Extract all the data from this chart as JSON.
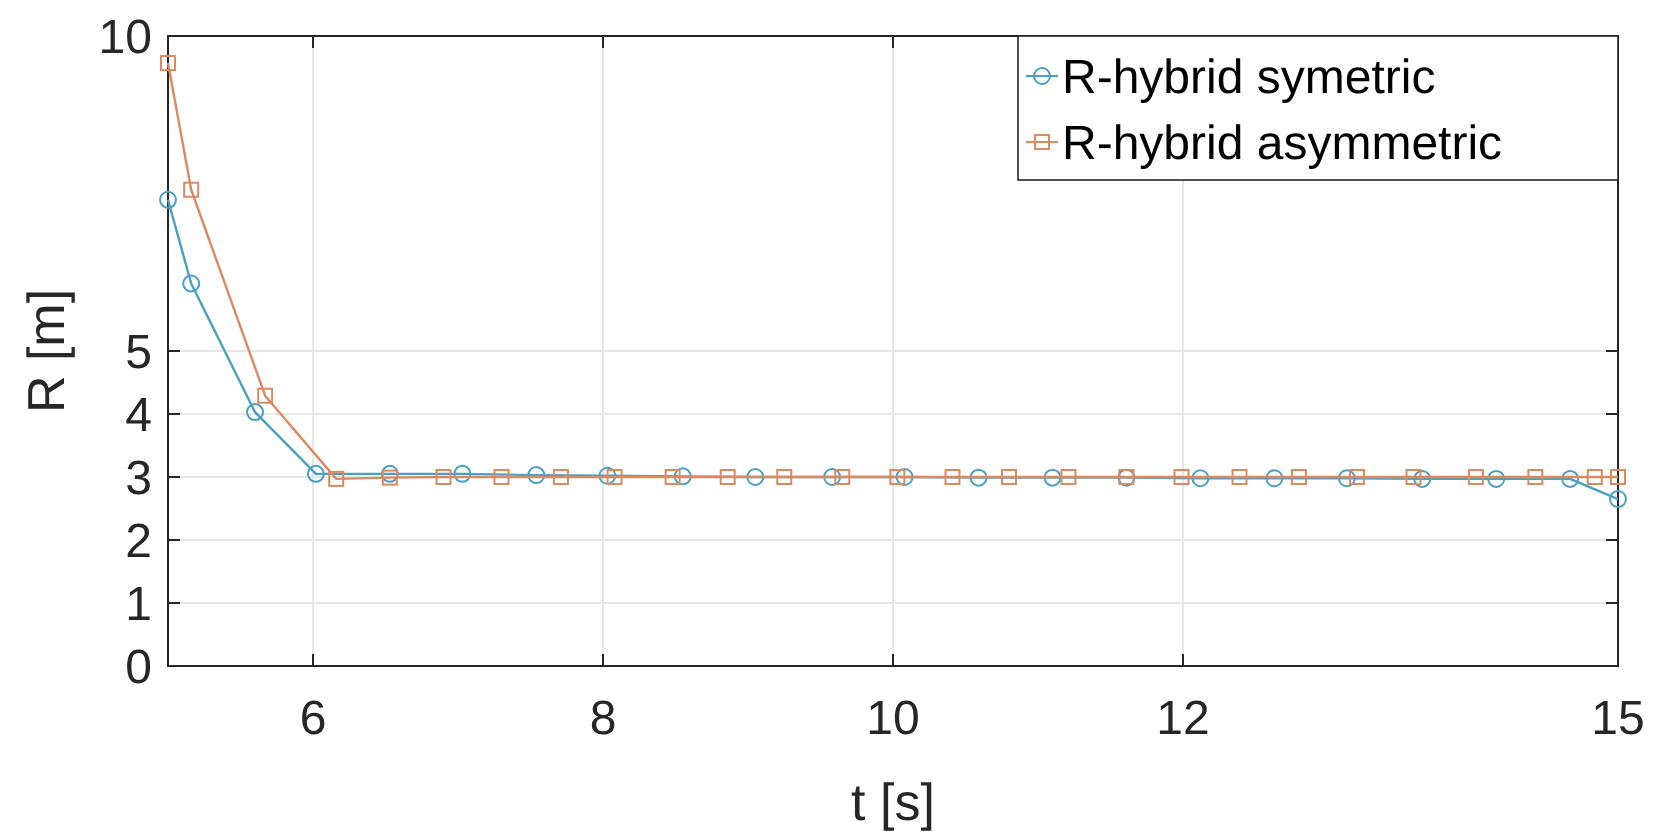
{
  "chart_data": {
    "type": "line",
    "xlabel": "t [s]",
    "ylabel": "R [m]",
    "xlim": [
      5,
      15
    ],
    "ylim": [
      0,
      10
    ],
    "xticks": [
      6,
      8,
      10,
      12,
      15
    ],
    "yticks": [
      0,
      1,
      2,
      3,
      4,
      5,
      10
    ],
    "grid": true,
    "legend": "top right",
    "line_style": "solid",
    "series": [
      {
        "name": "R-hybrid symetric",
        "color": "#4a9fc4",
        "marker": "circle",
        "x": [
          5,
          5.16,
          5.6,
          6.02,
          6.53,
          7.03,
          7.54,
          8.03,
          8.55,
          9.05,
          9.58,
          10.08,
          10.59,
          11.1,
          11.61,
          12.12,
          12.63,
          13.13,
          13.65,
          14.16,
          14.67,
          15
        ],
        "values": [
          7.4,
          6.07,
          4.03,
          3.05,
          3.05,
          3.05,
          3.03,
          3.02,
          3.01,
          3.0,
          3.0,
          3.0,
          2.99,
          2.99,
          2.99,
          2.98,
          2.98,
          2.98,
          2.97,
          2.97,
          2.97,
          2.65
        ]
      },
      {
        "name": "R-hybrid asymmetric",
        "color": "#d98a63",
        "marker": "square",
        "x": [
          5,
          5.16,
          5.67,
          6.16,
          6.53,
          6.9,
          7.3,
          7.71,
          8.08,
          8.48,
          8.86,
          9.25,
          9.65,
          10.03,
          10.41,
          10.8,
          11.21,
          11.61,
          11.99,
          12.39,
          12.8,
          13.2,
          13.59,
          14.02,
          14.43,
          14.84,
          15
        ],
        "values": [
          9.57,
          7.56,
          4.29,
          2.97,
          2.99,
          3.0,
          3.0,
          3.0,
          3.0,
          3.0,
          3.0,
          3.0,
          3.0,
          3.0,
          3.0,
          3.0,
          3.0,
          3.0,
          3.0,
          3.0,
          3.0,
          3.0,
          3.0,
          3.0,
          3.0,
          3.0,
          3.0
        ]
      }
    ]
  }
}
